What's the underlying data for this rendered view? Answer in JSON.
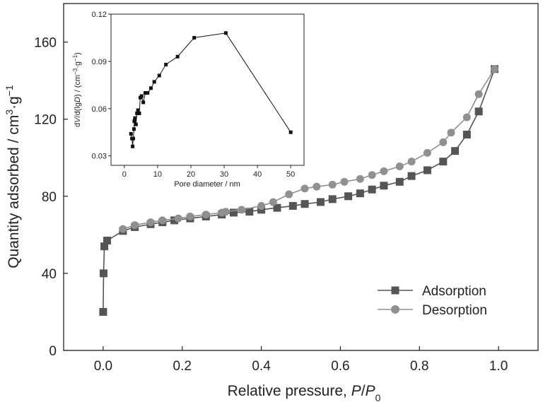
{
  "chart_data": [
    {
      "type": "line",
      "title": "",
      "xlabel": {
        "prefix": "Relative pressure, ",
        "p": "P",
        "slash": "/",
        "p0": "P",
        "sub": "0"
      },
      "ylabel": {
        "main": "Quantity adsorbed / cm",
        "sup1": "3",
        "mid": "·g",
        "sup2": "−1"
      },
      "xlim": [
        -0.1,
        1.1
      ],
      "ylim": [
        0,
        180
      ],
      "x_ticks": [
        0.0,
        0.2,
        0.4,
        0.6,
        0.8,
        1.0
      ],
      "x_tick_labels": [
        "0.0",
        "0.2",
        "0.4",
        "0.6",
        "0.8",
        "1.0"
      ],
      "y_ticks": [
        0,
        40,
        80,
        120,
        160
      ],
      "y_tick_labels": [
        "0",
        "40",
        "80",
        "120",
        "160"
      ],
      "grid": false,
      "legend_position": "bottom-right",
      "series": [
        {
          "name": "Adsorption",
          "marker": "square",
          "color": "#555555",
          "points": [
            [
              0.0,
              20
            ],
            [
              0.001,
              40
            ],
            [
              0.003,
              54
            ],
            [
              0.01,
              57
            ],
            [
              0.05,
              62
            ],
            [
              0.08,
              64
            ],
            [
              0.12,
              65.5
            ],
            [
              0.15,
              66.5
            ],
            [
              0.18,
              67.5
            ],
            [
              0.22,
              68.5
            ],
            [
              0.26,
              69.5
            ],
            [
              0.3,
              70.5
            ],
            [
              0.33,
              71.5
            ],
            [
              0.37,
              72
            ],
            [
              0.4,
              73
            ],
            [
              0.44,
              74
            ],
            [
              0.48,
              75
            ],
            [
              0.51,
              76
            ],
            [
              0.55,
              77
            ],
            [
              0.58,
              78.5
            ],
            [
              0.62,
              80
            ],
            [
              0.65,
              81.5
            ],
            [
              0.68,
              83.5
            ],
            [
              0.71,
              85.5
            ],
            [
              0.75,
              87.5
            ],
            [
              0.78,
              90.5
            ],
            [
              0.82,
              93.5
            ],
            [
              0.86,
              98
            ],
            [
              0.89,
              103.5
            ],
            [
              0.92,
              112
            ],
            [
              0.95,
              124
            ],
            [
              0.99,
              146
            ]
          ]
        },
        {
          "name": "Desorption",
          "marker": "circle",
          "color": "#909090",
          "points": [
            [
              0.99,
              146
            ],
            [
              0.95,
              133
            ],
            [
              0.92,
              121
            ],
            [
              0.88,
              113
            ],
            [
              0.86,
              108
            ],
            [
              0.82,
              102.5
            ],
            [
              0.78,
              98
            ],
            [
              0.75,
              95.5
            ],
            [
              0.71,
              93
            ],
            [
              0.68,
              91
            ],
            [
              0.65,
              89
            ],
            [
              0.61,
              87.5
            ],
            [
              0.58,
              86
            ],
            [
              0.54,
              85
            ],
            [
              0.51,
              84
            ],
            [
              0.47,
              81
            ],
            [
              0.43,
              77
            ],
            [
              0.4,
              75
            ],
            [
              0.35,
              73
            ],
            [
              0.31,
              72
            ],
            [
              0.3,
              71.5
            ],
            [
              0.26,
              70.5
            ],
            [
              0.22,
              69.5
            ],
            [
              0.19,
              68.5
            ],
            [
              0.15,
              67.5
            ],
            [
              0.12,
              66.5
            ],
            [
              0.08,
              65
            ],
            [
              0.05,
              63
            ]
          ]
        }
      ]
    },
    {
      "type": "line",
      "title": "",
      "xlabel": "Pore diameter / nm",
      "ylabel": {
        "part1": "d",
        "V": "V",
        "part2": "/d(lg",
        "D": "D",
        "part3": ") / (cm",
        "sup1": "−3",
        "part4": "·g",
        "sup2": "−1",
        "part5": ")"
      },
      "xlim": [
        -4,
        54
      ],
      "ylim": [
        0.024,
        0.12
      ],
      "x_ticks": [
        0,
        10,
        20,
        30,
        40,
        50
      ],
      "x_tick_labels": [
        "0",
        "10",
        "20",
        "30",
        "40",
        "50"
      ],
      "y_ticks": [
        0.03,
        0.06,
        0.09,
        0.12
      ],
      "y_tick_labels": [
        "0.03",
        "0.06",
        "0.09",
        "0.12"
      ],
      "grid": false,
      "series": [
        {
          "name": "",
          "marker": "square",
          "color": "#111111",
          "points": [
            [
              2.0,
              0.044
            ],
            [
              2.3,
              0.041
            ],
            [
              2.5,
              0.036
            ],
            [
              2.7,
              0.041
            ],
            [
              2.9,
              0.047
            ],
            [
              3.0,
              0.052
            ],
            [
              3.2,
              0.054
            ],
            [
              3.5,
              0.05
            ],
            [
              3.8,
              0.057
            ],
            [
              4.1,
              0.059
            ],
            [
              4.5,
              0.057
            ],
            [
              4.8,
              0.067
            ],
            [
              5.2,
              0.068
            ],
            [
              5.7,
              0.064
            ],
            [
              6.3,
              0.07
            ],
            [
              7.0,
              0.07
            ],
            [
              8.0,
              0.073
            ],
            [
              9.0,
              0.077
            ],
            [
              10.5,
              0.081
            ],
            [
              12.5,
              0.088
            ],
            [
              16.0,
              0.093
            ],
            [
              21.0,
              0.105
            ],
            [
              30.5,
              0.108
            ],
            [
              50.0,
              0.045
            ]
          ]
        }
      ]
    }
  ]
}
